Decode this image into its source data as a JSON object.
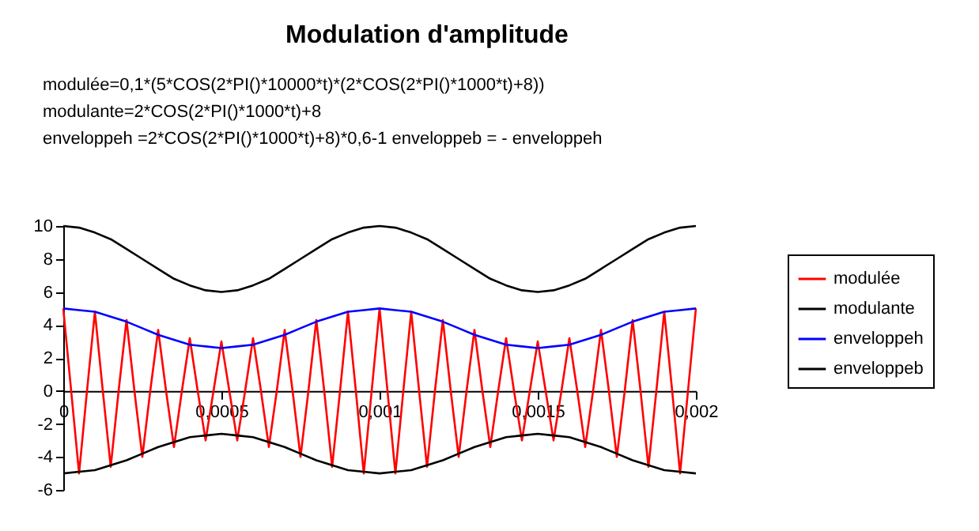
{
  "chart_data": {
    "type": "line",
    "title": "Modulation d'amplitude",
    "annotations": [
      "modulée=0,1*(5*COS(2*PI()*10000*t)*(2*COS(2*PI()*1000*t)+8))",
      "modulante=2*COS(2*PI()*1000*t)+8",
      "enveloppeh =2*COS(2*PI()*1000*t)+8)*0,6-1    enveloppeb = - enveloppeh"
    ],
    "x": [
      0,
      5e-05,
      0.0001,
      0.00015,
      0.0002,
      0.00025,
      0.0003,
      0.00035,
      0.0004,
      0.00045,
      0.0005,
      0.00055,
      0.0006,
      0.00065,
      0.0007,
      0.00075,
      0.0008,
      0.00085,
      0.0009,
      0.00095,
      0.001,
      0.00105,
      0.0011,
      0.00115,
      0.0012,
      0.00125,
      0.0013,
      0.00135,
      0.0014,
      0.00145,
      0.0015,
      0.00155,
      0.0016,
      0.00165,
      0.0017,
      0.00175,
      0.0018,
      0.00185,
      0.0019,
      0.00195,
      0.002
    ],
    "series": [
      {
        "name": "modulée",
        "color": "#ff0000",
        "x": [
          0,
          2.5e-05,
          5e-05,
          7.5e-05,
          0.0001,
          0.000125,
          0.00015,
          0.000175,
          0.0002,
          0.000225,
          0.00025,
          0.000275,
          0.0003,
          0.000325,
          0.00035,
          0.000375,
          0.0004,
          0.000425,
          0.00045,
          0.000475,
          0.0005,
          0.000525,
          0.00055,
          0.000575,
          0.0006,
          0.000625,
          0.00065,
          0.000675,
          0.0007,
          0.000725,
          0.00075,
          0.000775,
          0.0008,
          0.000825,
          0.00085,
          0.000875,
          0.0009,
          0.000925,
          0.00095,
          0.000975,
          0.001,
          0.001025,
          0.00105,
          0.001075,
          0.0011,
          0.001125,
          0.00115,
          0.001175,
          0.0012,
          0.001225,
          0.00125,
          0.001275,
          0.0013,
          0.001325,
          0.00135,
          0.001375,
          0.0014,
          0.001425,
          0.00145,
          0.001475,
          0.0015,
          0.001525,
          0.00155,
          0.001575,
          0.0016,
          0.001625,
          0.00165,
          0.001675,
          0.0017,
          0.001725,
          0.00175,
          0.001775,
          0.0018,
          0.001825,
          0.00185,
          0.001875,
          0.0019,
          0.001925,
          0.00195,
          0.001975,
          0.002
        ],
        "values": [
          5,
          0,
          -5,
          0,
          4.8,
          0,
          -4.6,
          0,
          4.3,
          0,
          -4,
          0,
          3.7,
          0,
          -3.4,
          0,
          3.2,
          0,
          -3,
          0,
          3,
          0,
          -3,
          0,
          3.2,
          0,
          -3.4,
          0,
          3.7,
          0,
          -4,
          0,
          4.3,
          0,
          -4.6,
          0,
          4.8,
          0,
          -5,
          0,
          5,
          0,
          -5,
          0,
          4.8,
          0,
          -4.6,
          0,
          4.3,
          0,
          -4,
          0,
          3.7,
          0,
          -3.4,
          0,
          3.2,
          0,
          -3,
          0,
          3,
          0,
          -3,
          0,
          3.2,
          0,
          -3.4,
          0,
          3.7,
          0,
          -4,
          0,
          4.3,
          0,
          -4.6,
          0,
          4.8,
          0,
          -5,
          0,
          5
        ]
      },
      {
        "name": "modulante",
        "color": "#000000",
        "values": [
          10,
          9.9,
          9.6,
          9.2,
          8.6,
          8,
          7.4,
          6.8,
          6.4,
          6.1,
          6,
          6.1,
          6.4,
          6.8,
          7.4,
          8,
          8.6,
          9.2,
          9.6,
          9.9,
          10,
          9.9,
          9.6,
          9.2,
          8.6,
          8,
          7.4,
          6.8,
          6.4,
          6.1,
          6,
          6.1,
          6.4,
          6.8,
          7.4,
          8,
          8.6,
          9.2,
          9.6,
          9.9,
          10
        ]
      },
      {
        "name": "enveloppeh",
        "color": "#0000ff",
        "values": [
          5,
          4.9,
          4.8,
          4.5,
          4.2,
          3.8,
          3.4,
          3.1,
          2.8,
          2.7,
          2.6,
          2.7,
          2.8,
          3.1,
          3.4,
          3.8,
          4.2,
          4.5,
          4.8,
          4.9,
          5,
          4.9,
          4.8,
          4.5,
          4.2,
          3.8,
          3.4,
          3.1,
          2.8,
          2.7,
          2.6,
          2.7,
          2.8,
          3.1,
          3.4,
          3.8,
          4.2,
          4.5,
          4.8,
          4.9,
          5
        ]
      },
      {
        "name": "enveloppeb",
        "color": "#000000",
        "values": [
          -5,
          -4.9,
          -4.8,
          -4.5,
          -4.2,
          -3.8,
          -3.4,
          -3.1,
          -2.8,
          -2.7,
          -2.6,
          -2.7,
          -2.8,
          -3.1,
          -3.4,
          -3.8,
          -4.2,
          -4.5,
          -4.8,
          -4.9,
          -5,
          -4.9,
          -4.8,
          -4.5,
          -4.2,
          -3.8,
          -3.4,
          -3.1,
          -2.8,
          -2.7,
          -2.6,
          -2.7,
          -2.8,
          -3.1,
          -3.4,
          -3.8,
          -4.2,
          -4.5,
          -4.8,
          -4.9,
          -5
        ]
      }
    ],
    "xlim": [
      0,
      0.002
    ],
    "xticks": [
      0,
      {
        "value": 0.0005,
        "label": "0,0005"
      },
      {
        "value": 0.001,
        "label": "0,001"
      },
      {
        "value": 0.0015,
        "label": "0,0015"
      },
      {
        "value": 0.002,
        "label": "0,002"
      }
    ],
    "ylim": [
      -6,
      10
    ],
    "yticks": [
      -6,
      -4,
      -2,
      0,
      2,
      4,
      6,
      8,
      10
    ],
    "grid": false,
    "legend": "right",
    "line_style": "solid",
    "marker": "none"
  }
}
